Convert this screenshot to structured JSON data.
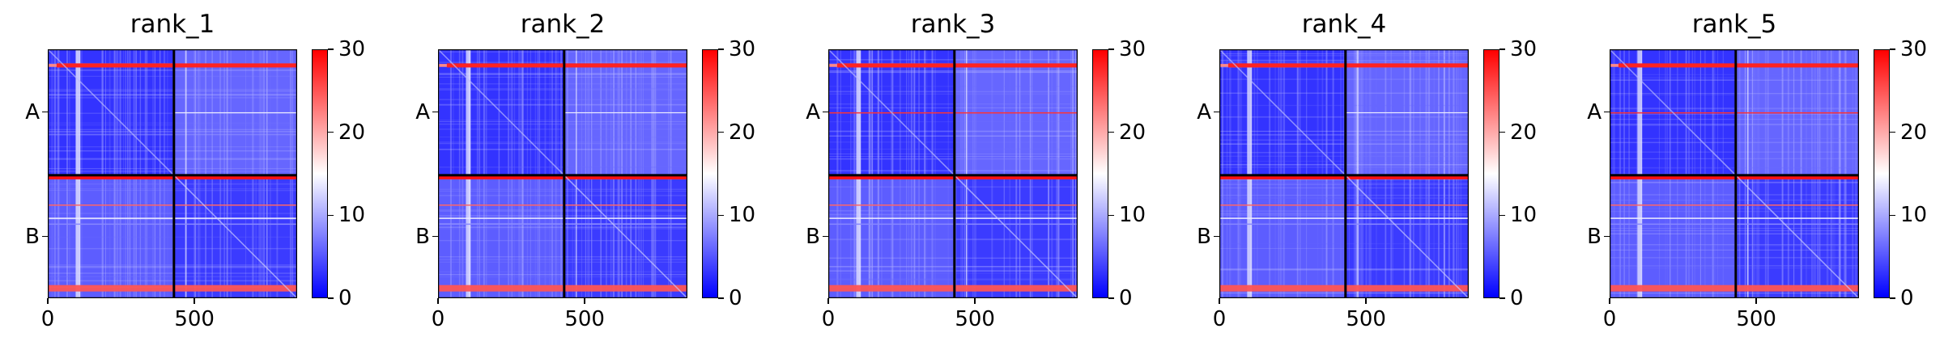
{
  "chart_data": [
    {
      "type": "heatmap",
      "title": "rank_1",
      "variant": 0
    },
    {
      "type": "heatmap",
      "title": "rank_2",
      "variant": 1
    },
    {
      "type": "heatmap",
      "title": "rank_3",
      "variant": 2
    },
    {
      "type": "heatmap",
      "title": "rank_4",
      "variant": 3
    },
    {
      "type": "heatmap",
      "title": "rank_5",
      "variant": 4
    }
  ],
  "shared": {
    "n_residues": 850,
    "chain_break": 430,
    "x_ticks": [
      0,
      500
    ],
    "y_ticks": [
      "A",
      "B"
    ],
    "colorbar": {
      "min": 0,
      "max": 30,
      "ticks": [
        0,
        10,
        20,
        30
      ],
      "colors": [
        "#0000ff",
        "#ffffff",
        "#ff0000"
      ]
    }
  }
}
